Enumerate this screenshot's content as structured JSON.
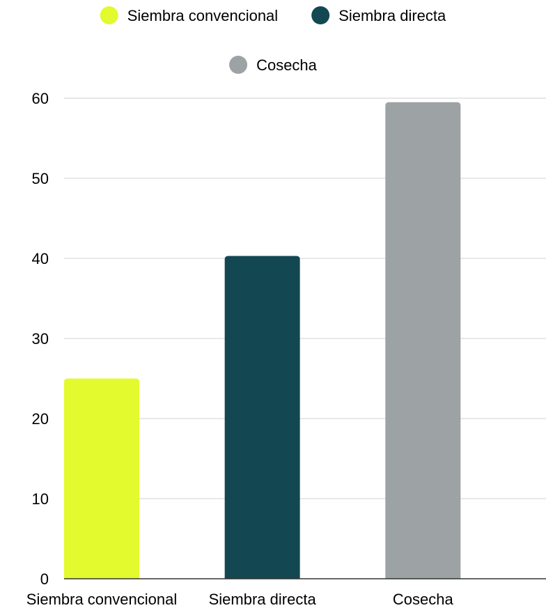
{
  "chart_data": {
    "type": "bar",
    "categories": [
      "Siembra convencional",
      "Siembra directa",
      "Cosecha"
    ],
    "series": [
      {
        "name": "Siembra convencional",
        "color": "#e2fa2e",
        "category_index": 0,
        "value": 25
      },
      {
        "name": "Siembra directa",
        "color": "#134853",
        "category_index": 1,
        "value": 40.3
      },
      {
        "name": "Cosecha",
        "color": "#9da2a4",
        "category_index": 2,
        "value": 59.5
      }
    ],
    "values": [
      25,
      40.3,
      59.5
    ],
    "ylim": [
      0,
      60
    ],
    "yticks": [
      0,
      10,
      20,
      30,
      40,
      50,
      60
    ],
    "grid": true,
    "legend_position": "top",
    "gridline_color": "#d0d0d0",
    "baseline_color": "#333333"
  }
}
